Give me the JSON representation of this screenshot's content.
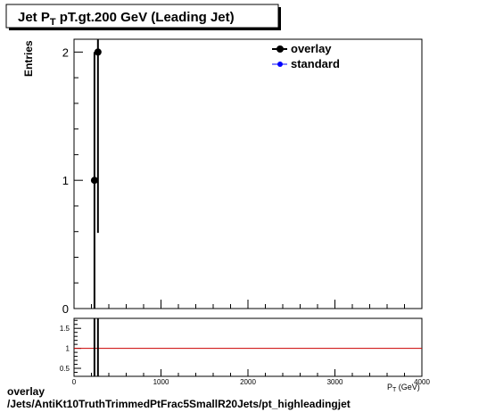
{
  "title_main": "Jet P",
  "title_sub": "T",
  "title_rest": " pT.gt.200 GeV (Leading Jet)",
  "ylabel": "Entries",
  "xlabel": "P",
  "xlabel_sub": "T",
  "xlabel_unit": " (GeV)",
  "footer": {
    "line1": "overlay",
    "line2": "/Jets/AntiKt10TruthTrimmedPtFrac5SmallR20Jets/pt_highleadingjet"
  },
  "colors": {
    "overlay": "#000000",
    "standard": "#0000ff",
    "ratio_line": "#cc0000"
  },
  "chart_data": [
    {
      "type": "scatter",
      "xlim": [
        0,
        4000
      ],
      "ylim": [
        0,
        2.1
      ],
      "xticks": [
        0,
        1000,
        2000,
        3000,
        4000
      ],
      "yticks": [
        0,
        1,
        2
      ],
      "ytick_labels": [
        "0",
        "1",
        "2"
      ],
      "grid": false,
      "legend_position": "top-right",
      "series": [
        {
          "name": "overlay",
          "points": [
            {
              "x": 235,
              "y": 1,
              "err": 1
            },
            {
              "x": 275,
              "y": 2,
              "err": 1.41
            }
          ]
        },
        {
          "name": "standard",
          "points": []
        }
      ]
    },
    {
      "type": "line",
      "xlim": [
        0,
        4000
      ],
      "ylim": [
        0.3,
        1.75
      ],
      "xticks": [
        0,
        1000,
        2000,
        3000,
        4000
      ],
      "xtick_labels": [
        "0",
        "1000",
        "2000",
        "3000",
        "4000"
      ],
      "yticks": [
        0.5,
        1,
        1.5
      ],
      "ytick_labels": [
        "0.5",
        "1",
        "1.5"
      ],
      "reference_line": 1,
      "error_bars_x": [
        235,
        275
      ]
    }
  ]
}
